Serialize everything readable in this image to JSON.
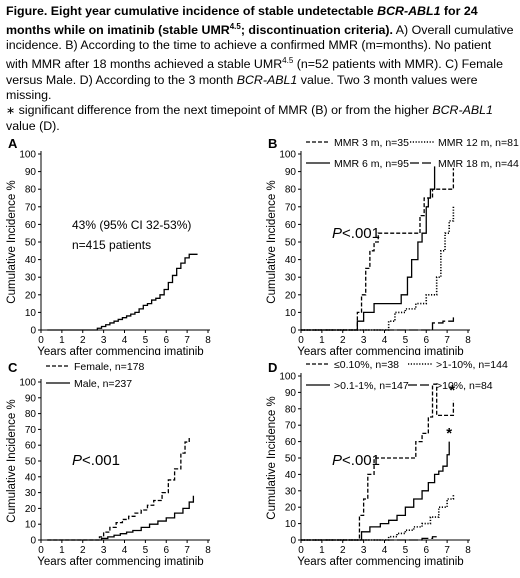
{
  "caption": {
    "label": "Figure.",
    "title_pre": " Eight year cumulative incidence of stable undetectable ",
    "gene": "BCR-ABL1",
    "title_mid": " for 24 months while on imatinib (stable UMR",
    "title_sup": "4.5",
    "title_post": "; discontinuation criteria).",
    "text_a": " A) Overall cumulative incidence. B) According to the time to achieve a confirmed MMR (m=months). No patient with MMR after 18 months achieved a stable UMR",
    "text_a_sup": "4.5",
    "text_b": " (n=52 patients with MMR). C) Female versus Male. D) According to the 3 month ",
    "text_b_gene": "BCR-ABL1",
    "text_c": " value. Two 3 month values were missing.",
    "note_star": "∗",
    "note_pre": " significant difference from the next timepoint of MMR (B) or from the higher ",
    "note_gene": "BCR-ABL1",
    "note_post": " value (D)."
  },
  "colors": {
    "line": "#000000",
    "axis": "#000000"
  },
  "chart_data": [
    {
      "panel": "A",
      "type": "line",
      "xlabel": "Years after commencing imatinib",
      "ylabel": "Cumulative Incidence %",
      "xlim": [
        0,
        8
      ],
      "ylim": [
        0,
        100
      ],
      "xticks": [
        0,
        1,
        2,
        3,
        4,
        5,
        6,
        7,
        8
      ],
      "yticks": [
        0,
        10,
        20,
        30,
        40,
        50,
        60,
        70,
        80,
        90,
        100
      ],
      "annotations": [
        "43% (95% CI 32-53%)",
        "n=415 patients"
      ],
      "series": [
        {
          "style": "solid",
          "x": [
            0.3,
            2.6,
            2.7,
            2.9,
            3.1,
            3.3,
            3.5,
            3.7,
            3.9,
            4.1,
            4.3,
            4.5,
            4.7,
            4.9,
            5.1,
            5.3,
            5.5,
            5.7,
            5.9,
            6.1,
            6.3,
            6.5,
            6.7,
            6.9,
            7.1,
            7.3,
            7.5
          ],
          "y": [
            0,
            0,
            1,
            2,
            3,
            4,
            5,
            6,
            7,
            8,
            9,
            10,
            12,
            14,
            15,
            17,
            18,
            20,
            23,
            27,
            31,
            35,
            38,
            41,
            43,
            43,
            43
          ]
        }
      ]
    },
    {
      "panel": "B",
      "type": "line",
      "xlabel": "Years after commencing imatinib",
      "ylabel": "Cumulative Incidence %",
      "xlim": [
        0,
        8
      ],
      "ylim": [
        0,
        100
      ],
      "xticks": [
        0,
        1,
        2,
        3,
        4,
        5,
        6,
        7,
        8
      ],
      "yticks": [
        0,
        10,
        20,
        30,
        40,
        50,
        60,
        70,
        80,
        90,
        100
      ],
      "annotations": [
        "P<.001",
        "*",
        "*"
      ],
      "legend": [
        {
          "label": "MMR 3 m, n=35",
          "style": "dashed"
        },
        {
          "label": "MMR 12 m, n=81",
          "style": "dotted"
        },
        {
          "label": "MMR 6 m, n=95",
          "style": "solid"
        },
        {
          "label": "MMR 18 m, n=44",
          "style": "longdash"
        }
      ],
      "series": [
        {
          "name": "MMR 3 m, n=35",
          "style": "dashed",
          "x": [
            0.0,
            2.6,
            2.7,
            2.9,
            3.1,
            3.3,
            3.5,
            3.7,
            4.0,
            4.5,
            5.0,
            5.5,
            5.7,
            5.9,
            6.3,
            6.6,
            7.1,
            7.3
          ],
          "y": [
            0,
            0,
            10,
            20,
            35,
            45,
            50,
            55,
            55,
            55,
            55,
            55,
            65,
            75,
            80,
            80,
            80,
            92
          ]
        },
        {
          "name": "MMR 6 m, n=95",
          "style": "solid",
          "x": [
            0.0,
            2.5,
            2.7,
            3.0,
            3.5,
            4.0,
            4.5,
            4.8,
            5.1,
            5.3,
            5.6,
            5.8,
            6.0,
            6.1,
            6.2,
            6.4
          ],
          "y": [
            0,
            0,
            5,
            10,
            15,
            15,
            15,
            20,
            30,
            40,
            50,
            55,
            70,
            75,
            80,
            93
          ]
        },
        {
          "name": "MMR 12 m, n=81",
          "style": "dotted",
          "x": [
            0.0,
            4.0,
            4.2,
            4.5,
            5.0,
            5.5,
            6.0,
            6.5,
            6.7,
            6.9,
            7.1,
            7.3
          ],
          "y": [
            0,
            0,
            5,
            10,
            12,
            15,
            20,
            30,
            45,
            55,
            62,
            70
          ]
        },
        {
          "name": "MMR 18 m, n=44",
          "style": "longdash",
          "x": [
            0.0,
            6.0,
            6.3,
            6.8,
            7.2,
            7.3
          ],
          "y": [
            0,
            0,
            4,
            5,
            5,
            8
          ]
        }
      ]
    },
    {
      "panel": "C",
      "type": "line",
      "xlabel": "Years after commencing imatinib",
      "ylabel": "Cumulative Incidence %",
      "xlim": [
        0,
        8
      ],
      "ylim": [
        0,
        100
      ],
      "xticks": [
        0,
        1,
        2,
        3,
        4,
        5,
        6,
        7,
        8
      ],
      "yticks": [
        0,
        10,
        20,
        30,
        40,
        50,
        60,
        70,
        80,
        90,
        100
      ],
      "annotations": [
        "P<.001"
      ],
      "legend": [
        {
          "label": "Female, n=178",
          "style": "dashed"
        },
        {
          "label": "Male, n=237",
          "style": "solid"
        }
      ],
      "series": [
        {
          "name": "Female, n=178",
          "style": "dashed",
          "x": [
            0.3,
            2.6,
            2.8,
            3.0,
            3.3,
            3.6,
            3.9,
            4.2,
            4.5,
            4.8,
            5.1,
            5.4,
            5.8,
            6.1,
            6.4,
            6.7,
            6.9,
            7.1
          ],
          "y": [
            0,
            0,
            2,
            5,
            8,
            11,
            13,
            15,
            17,
            19,
            22,
            25,
            30,
            38,
            45,
            55,
            62,
            65
          ]
        },
        {
          "name": "Male, n=237",
          "style": "solid",
          "x": [
            0.3,
            2.7,
            2.9,
            3.2,
            3.5,
            3.8,
            4.1,
            4.4,
            4.8,
            5.2,
            5.6,
            6.0,
            6.4,
            6.8,
            7.1,
            7.3
          ],
          "y": [
            0,
            0,
            1,
            2,
            3,
            4,
            5,
            6,
            8,
            10,
            12,
            14,
            17,
            20,
            24,
            28
          ]
        }
      ]
    },
    {
      "panel": "D",
      "type": "line",
      "xlabel": "Years after commencing imatinib",
      "ylabel": "Cumulative Incidence %",
      "xlim": [
        0,
        8
      ],
      "ylim": [
        0,
        100
      ],
      "xticks": [
        0,
        1,
        2,
        3,
        4,
        5,
        6,
        7,
        8
      ],
      "yticks": [
        0,
        10,
        20,
        30,
        40,
        50,
        60,
        70,
        80,
        90,
        100
      ],
      "annotations": [
        "P<.001",
        "*",
        "*"
      ],
      "legend": [
        {
          "label": "≤0.10%, n=38",
          "style": "dashed"
        },
        {
          "label": ">1-10%, n=144",
          "style": "dotted"
        },
        {
          "label": ">0.1-1%, n=147",
          "style": "solid"
        },
        {
          "label": ">10%, n=84",
          "style": "longdash"
        }
      ],
      "series": [
        {
          "name": "≤0.10%, n=38",
          "style": "dashed",
          "x": [
            0.0,
            2.6,
            2.8,
            3.0,
            3.2,
            3.5,
            4.0,
            4.2,
            5.0,
            5.5,
            5.8,
            6.1,
            6.3,
            6.5,
            7.2,
            7.3
          ],
          "y": [
            0,
            0,
            15,
            25,
            40,
            50,
            50,
            50,
            50,
            60,
            65,
            75,
            95,
            76,
            76,
            85
          ]
        },
        {
          "name": ">0.1-1%, n=147",
          "style": "solid",
          "x": [
            0.0,
            2.7,
            2.9,
            3.3,
            3.8,
            4.2,
            4.6,
            5.0,
            5.4,
            5.8,
            6.1,
            6.4,
            6.6,
            6.8,
            7.0,
            7.1
          ],
          "y": [
            0,
            0,
            5,
            8,
            10,
            12,
            15,
            20,
            25,
            30,
            35,
            40,
            42,
            45,
            52,
            60
          ]
        },
        {
          "name": ">1-10%, n=144",
          "style": "dotted",
          "x": [
            0.0,
            3.9,
            4.2,
            4.6,
            5.0,
            5.4,
            5.8,
            6.2,
            6.6,
            7.0,
            7.3
          ],
          "y": [
            0,
            0,
            2,
            4,
            6,
            8,
            10,
            14,
            20,
            25,
            28
          ]
        },
        {
          "name": ">10%, n=84",
          "style": "longdash",
          "x": [
            0.0,
            3.0,
            3.8,
            4.8,
            5.8,
            6.3,
            6.5
          ],
          "y": [
            0,
            0,
            0,
            0,
            1,
            2,
            2
          ]
        }
      ]
    }
  ]
}
